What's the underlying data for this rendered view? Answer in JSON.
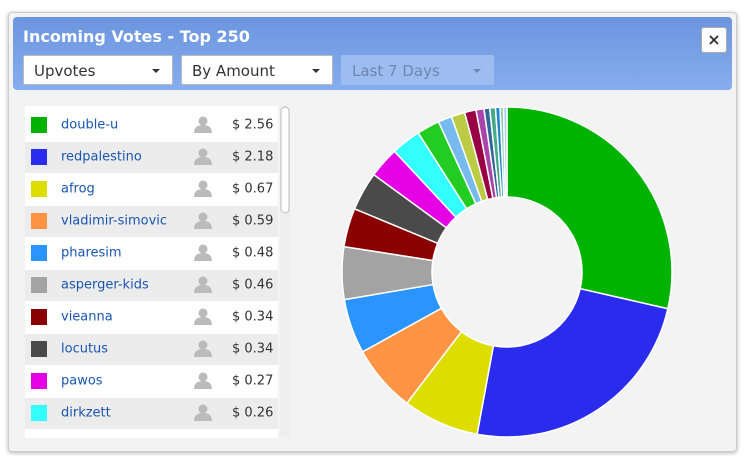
{
  "header": {
    "title": "Incoming Votes - Top 250",
    "close": "×",
    "dropdowns": [
      "Upvotes",
      "By Amount",
      "Last 7 Days"
    ]
  },
  "chart_data": {
    "type": "donut",
    "categories": [
      "double-u",
      "redpalestino",
      "afrog",
      "vladimir-simovic",
      "pharesim",
      "asperger-kids",
      "vieanna",
      "locutus",
      "pawos",
      "dirkzett",
      null,
      null,
      null,
      null,
      null,
      null,
      null,
      null,
      null,
      null
    ],
    "values": [
      2.56,
      2.18,
      0.67,
      0.59,
      0.48,
      0.46,
      0.34,
      0.34,
      0.27,
      0.26,
      0.2,
      0.12,
      0.12,
      0.1,
      0.07,
      0.05,
      0.05,
      0.04,
      0.03,
      0.03
    ],
    "value_labels": [
      "$ 2.56",
      "$ 2.18",
      "$ 0.67",
      "$ 0.59",
      "$ 0.48",
      "$ 0.46",
      "$ 0.34",
      "$ 0.34",
      "$ 0.27",
      "$ 0.26",
      null,
      null,
      null,
      null,
      null,
      null,
      null,
      null,
      null,
      null
    ],
    "colors": [
      "#00b300",
      "#2b2bee",
      "#dddd00",
      "#ff9444",
      "#2b95ff",
      "#a3a3a3",
      "#8b0000",
      "#4a4a4a",
      "#e600e6",
      "#33ffff",
      "#22cc22",
      "#77bbee",
      "#bbcc44",
      "#990044",
      "#aa44aa",
      "#336699",
      "#44aa88",
      "#2288cc",
      "#88ccaa",
      "#aaccee"
    ]
  }
}
